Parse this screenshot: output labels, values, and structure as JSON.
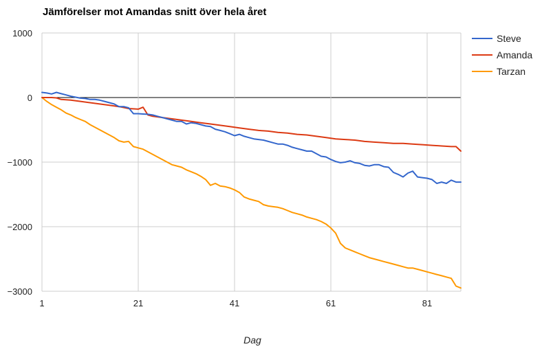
{
  "chart_data": {
    "type": "line",
    "title": "Jämförelser mot Amandas snitt över hela året",
    "xlabel": "Dag",
    "ylabel": "",
    "xlim": [
      1,
      88
    ],
    "ylim": [
      -3000,
      1000
    ],
    "xticks": [
      1,
      21,
      41,
      61,
      81
    ],
    "yticks": [
      1000,
      0,
      -1000,
      -2000,
      -3000
    ],
    "ytick_labels": [
      "1000",
      "0",
      "−1000",
      "−2000",
      "−3000"
    ],
    "grid": true,
    "zero_line": true,
    "legend_position": "right",
    "series": [
      {
        "name": "Steve",
        "color": "#3366cc",
        "points": [
          [
            1,
            80
          ],
          [
            2,
            70
          ],
          [
            3,
            55
          ],
          [
            4,
            80
          ],
          [
            5,
            60
          ],
          [
            6,
            40
          ],
          [
            7,
            20
          ],
          [
            8,
            5
          ],
          [
            9,
            -10
          ],
          [
            10,
            -15
          ],
          [
            11,
            -30
          ],
          [
            12,
            -30
          ],
          [
            13,
            -40
          ],
          [
            14,
            -60
          ],
          [
            15,
            -80
          ],
          [
            16,
            -100
          ],
          [
            17,
            -140
          ],
          [
            18,
            -140
          ],
          [
            19,
            -160
          ],
          [
            20,
            -250
          ],
          [
            21,
            -250
          ],
          [
            22,
            -255
          ],
          [
            23,
            -260
          ],
          [
            24,
            -270
          ],
          [
            25,
            -290
          ],
          [
            26,
            -310
          ],
          [
            27,
            -330
          ],
          [
            28,
            -350
          ],
          [
            29,
            -370
          ],
          [
            30,
            -370
          ],
          [
            31,
            -410
          ],
          [
            32,
            -390
          ],
          [
            33,
            -400
          ],
          [
            34,
            -420
          ],
          [
            35,
            -440
          ],
          [
            36,
            -450
          ],
          [
            37,
            -490
          ],
          [
            38,
            -510
          ],
          [
            39,
            -530
          ],
          [
            40,
            -560
          ],
          [
            41,
            -590
          ],
          [
            42,
            -570
          ],
          [
            43,
            -600
          ],
          [
            44,
            -620
          ],
          [
            45,
            -640
          ],
          [
            46,
            -650
          ],
          [
            47,
            -660
          ],
          [
            48,
            -680
          ],
          [
            49,
            -700
          ],
          [
            50,
            -720
          ],
          [
            51,
            -720
          ],
          [
            52,
            -740
          ],
          [
            53,
            -770
          ],
          [
            54,
            -790
          ],
          [
            55,
            -810
          ],
          [
            56,
            -830
          ],
          [
            57,
            -830
          ],
          [
            58,
            -870
          ],
          [
            59,
            -910
          ],
          [
            60,
            -920
          ],
          [
            61,
            -960
          ],
          [
            62,
            -990
          ],
          [
            63,
            -1010
          ],
          [
            64,
            -1000
          ],
          [
            65,
            -980
          ],
          [
            66,
            -1010
          ],
          [
            67,
            -1020
          ],
          [
            68,
            -1050
          ],
          [
            69,
            -1060
          ],
          [
            70,
            -1040
          ],
          [
            71,
            -1040
          ],
          [
            72,
            -1070
          ],
          [
            73,
            -1080
          ],
          [
            74,
            -1160
          ],
          [
            75,
            -1190
          ],
          [
            76,
            -1230
          ],
          [
            77,
            -1170
          ],
          [
            78,
            -1140
          ],
          [
            79,
            -1230
          ],
          [
            80,
            -1240
          ],
          [
            81,
            -1250
          ],
          [
            82,
            -1270
          ],
          [
            83,
            -1330
          ],
          [
            84,
            -1310
          ],
          [
            85,
            -1330
          ],
          [
            86,
            -1280
          ],
          [
            87,
            -1310
          ],
          [
            88,
            -1310
          ]
        ]
      },
      {
        "name": "Amanda",
        "color": "#dc3912",
        "points": [
          [
            1,
            0
          ],
          [
            3,
            0
          ],
          [
            4,
            -5
          ],
          [
            5,
            -30
          ],
          [
            7,
            -40
          ],
          [
            9,
            -60
          ],
          [
            11,
            -80
          ],
          [
            13,
            -100
          ],
          [
            15,
            -120
          ],
          [
            17,
            -140
          ],
          [
            19,
            -170
          ],
          [
            21,
            -180
          ],
          [
            22,
            -150
          ],
          [
            23,
            -270
          ],
          [
            24,
            -290
          ],
          [
            26,
            -310
          ],
          [
            28,
            -330
          ],
          [
            30,
            -350
          ],
          [
            32,
            -370
          ],
          [
            34,
            -390
          ],
          [
            36,
            -410
          ],
          [
            38,
            -430
          ],
          [
            40,
            -450
          ],
          [
            42,
            -470
          ],
          [
            44,
            -490
          ],
          [
            46,
            -510
          ],
          [
            48,
            -520
          ],
          [
            50,
            -540
          ],
          [
            52,
            -550
          ],
          [
            54,
            -570
          ],
          [
            56,
            -580
          ],
          [
            58,
            -600
          ],
          [
            60,
            -620
          ],
          [
            62,
            -640
          ],
          [
            64,
            -650
          ],
          [
            66,
            -660
          ],
          [
            68,
            -680
          ],
          [
            70,
            -690
          ],
          [
            72,
            -700
          ],
          [
            74,
            -710
          ],
          [
            76,
            -710
          ],
          [
            78,
            -720
          ],
          [
            80,
            -730
          ],
          [
            82,
            -740
          ],
          [
            84,
            -750
          ],
          [
            86,
            -760
          ],
          [
            87,
            -760
          ],
          [
            88,
            -830
          ]
        ]
      },
      {
        "name": "Tarzan",
        "color": "#ff9900",
        "points": [
          [
            1,
            0
          ],
          [
            2,
            -60
          ],
          [
            3,
            -110
          ],
          [
            4,
            -150
          ],
          [
            5,
            -190
          ],
          [
            6,
            -240
          ],
          [
            7,
            -270
          ],
          [
            8,
            -310
          ],
          [
            9,
            -340
          ],
          [
            10,
            -370
          ],
          [
            11,
            -420
          ],
          [
            12,
            -460
          ],
          [
            13,
            -500
          ],
          [
            14,
            -540
          ],
          [
            15,
            -580
          ],
          [
            16,
            -620
          ],
          [
            17,
            -670
          ],
          [
            18,
            -690
          ],
          [
            19,
            -680
          ],
          [
            20,
            -760
          ],
          [
            21,
            -780
          ],
          [
            22,
            -800
          ],
          [
            23,
            -840
          ],
          [
            24,
            -880
          ],
          [
            25,
            -920
          ],
          [
            26,
            -960
          ],
          [
            27,
            -1000
          ],
          [
            28,
            -1040
          ],
          [
            29,
            -1060
          ],
          [
            30,
            -1080
          ],
          [
            31,
            -1120
          ],
          [
            32,
            -1150
          ],
          [
            33,
            -1180
          ],
          [
            34,
            -1220
          ],
          [
            35,
            -1270
          ],
          [
            36,
            -1360
          ],
          [
            37,
            -1330
          ],
          [
            38,
            -1370
          ],
          [
            39,
            -1380
          ],
          [
            40,
            -1400
          ],
          [
            41,
            -1430
          ],
          [
            42,
            -1470
          ],
          [
            43,
            -1540
          ],
          [
            44,
            -1570
          ],
          [
            45,
            -1590
          ],
          [
            46,
            -1610
          ],
          [
            47,
            -1660
          ],
          [
            48,
            -1680
          ],
          [
            49,
            -1690
          ],
          [
            50,
            -1700
          ],
          [
            51,
            -1720
          ],
          [
            52,
            -1750
          ],
          [
            53,
            -1780
          ],
          [
            54,
            -1800
          ],
          [
            55,
            -1820
          ],
          [
            56,
            -1850
          ],
          [
            57,
            -1870
          ],
          [
            58,
            -1890
          ],
          [
            59,
            -1920
          ],
          [
            60,
            -1960
          ],
          [
            61,
            -2020
          ],
          [
            62,
            -2100
          ],
          [
            63,
            -2260
          ],
          [
            64,
            -2330
          ],
          [
            65,
            -2360
          ],
          [
            66,
            -2390
          ],
          [
            67,
            -2420
          ],
          [
            68,
            -2450
          ],
          [
            69,
            -2480
          ],
          [
            70,
            -2500
          ],
          [
            71,
            -2520
          ],
          [
            72,
            -2540
          ],
          [
            73,
            -2560
          ],
          [
            74,
            -2580
          ],
          [
            75,
            -2600
          ],
          [
            76,
            -2620
          ],
          [
            77,
            -2640
          ],
          [
            78,
            -2640
          ],
          [
            79,
            -2660
          ],
          [
            80,
            -2680
          ],
          [
            81,
            -2700
          ],
          [
            82,
            -2720
          ],
          [
            83,
            -2740
          ],
          [
            84,
            -2760
          ],
          [
            85,
            -2780
          ],
          [
            86,
            -2800
          ],
          [
            87,
            -2920
          ],
          [
            88,
            -2950
          ]
        ]
      }
    ]
  }
}
